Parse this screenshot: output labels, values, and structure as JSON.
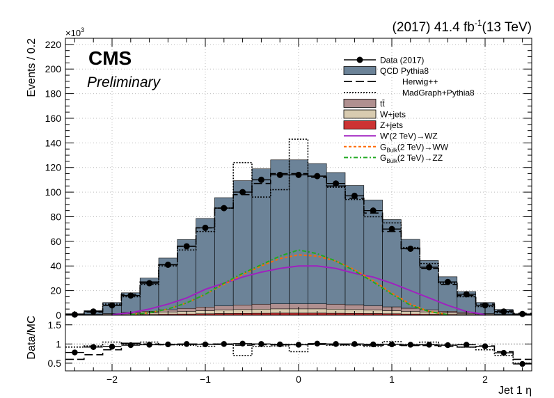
{
  "header": {
    "lumi": "(2017) 41.4 fb",
    "lumi_sup": "-1",
    "lumi_energy": "(13 TeV)",
    "experiment": "CMS",
    "status": "Preliminary",
    "exponent_base": "×10",
    "exponent_power": "3"
  },
  "chart_data": [
    {
      "type": "histogram",
      "panel": "main",
      "ylabel": "Events / 0.2",
      "xlabel": "",
      "xlim": [
        -2.5,
        2.5
      ],
      "ylim": [
        0,
        225
      ],
      "y_scale_note": "values in units of 10^3",
      "bin_edges": [
        -2.5,
        -2.3,
        -2.1,
        -1.9,
        -1.7,
        -1.5,
        -1.3,
        -1.1,
        -0.9,
        -0.7,
        -0.5,
        -0.3,
        -0.1,
        0.1,
        0.3,
        0.5,
        0.7,
        0.9,
        1.1,
        1.3,
        1.5,
        1.7,
        1.9,
        2.1,
        2.3,
        2.5
      ],
      "yticks": [
        0,
        20,
        40,
        60,
        80,
        100,
        120,
        140,
        160,
        180,
        200,
        220
      ],
      "xticks": [
        -2,
        -1,
        0,
        1,
        2
      ],
      "grid": true,
      "legend_position": "top-right",
      "legend": [
        {
          "label": "Data (2017)",
          "style": "marker"
        },
        {
          "label": "QCD Pythia8",
          "style": "fill",
          "color": "#6c8398"
        },
        {
          "label": "Herwig++",
          "style": "dash"
        },
        {
          "label": "MadGraph+Pythia8",
          "style": "dot"
        },
        {
          "label": "tt̄",
          "style": "fill",
          "color": "#b09090"
        },
        {
          "label": "W+jets",
          "style": "fill",
          "color": "#d8cbb0"
        },
        {
          "label": "Z+jets",
          "style": "fill",
          "color": "#cc3333"
        },
        {
          "label": "W'(2 TeV)→WZ",
          "style": "line",
          "color": "#a020c0"
        },
        {
          "label_main": "G",
          "label_sub": "Bulk",
          "label_rest": "(2 TeV)→WW",
          "style": "dashline",
          "color": "#ff6a00"
        },
        {
          "label_main": "G",
          "label_sub": "Bulk",
          "label_rest": "(2 TeV)→ZZ",
          "style": "dashdot",
          "color": "#22aa22"
        }
      ],
      "series": [
        {
          "name": "Data (2017)",
          "values": [
            0.5,
            3,
            8,
            16,
            26,
            41,
            56,
            71,
            87,
            100,
            110,
            114,
            114,
            113,
            107,
            97,
            85,
            70,
            54,
            39,
            27,
            17,
            8,
            3,
            1
          ]
        },
        {
          "name": "QCD Pythia8",
          "values": [
            1,
            3,
            9,
            16,
            27,
            42,
            56,
            72,
            88,
            101,
            110,
            117,
            117,
            114,
            107,
            97,
            86,
            71,
            56,
            40,
            28,
            17,
            9,
            4,
            1
          ]
        },
        {
          "name": "Herwig++",
          "values": [
            0.5,
            2.5,
            8,
            17,
            27,
            41,
            56,
            71,
            87,
            98,
            107,
            115,
            115,
            112,
            105,
            95,
            83,
            68,
            54,
            38,
            25,
            16,
            9,
            3.5,
            1.5
          ]
        },
        {
          "name": "MadGraph+Pythia8",
          "values": [
            0.5,
            3,
            9,
            15,
            25,
            40,
            53,
            68,
            87,
            124,
            96,
            102,
            143,
            113,
            104,
            94,
            80,
            75,
            55,
            42,
            26,
            15,
            7,
            2,
            0.5
          ]
        },
        {
          "name": "tt̄",
          "values": [
            0.1,
            0.3,
            0.6,
            1,
            1.4,
            2,
            2.5,
            3,
            3.3,
            3.7,
            4,
            4.1,
            4.1,
            4.1,
            4,
            3.8,
            3.4,
            3.1,
            2.6,
            2,
            1.4,
            1,
            0.6,
            0.3,
            0.1
          ]
        },
        {
          "name": "W+jets",
          "values": [
            0.1,
            0.3,
            0.5,
            0.8,
            1.2,
            1.6,
            2,
            2.4,
            2.8,
            3.1,
            3.3,
            3.4,
            3.4,
            3.4,
            3.3,
            3.1,
            2.8,
            2.4,
            2,
            1.6,
            1.2,
            0.8,
            0.5,
            0.3,
            0.1
          ]
        },
        {
          "name": "Z+jets",
          "values": [
            0.05,
            0.1,
            0.2,
            0.4,
            0.6,
            0.8,
            1,
            1.2,
            1.4,
            1.5,
            1.6,
            1.7,
            1.7,
            1.7,
            1.6,
            1.5,
            1.4,
            1.2,
            1,
            0.8,
            0.6,
            0.4,
            0.2,
            0.1,
            0.05
          ]
        },
        {
          "name": "W'(2 TeV)→WZ",
          "curve_x": [
            -2,
            -1.8,
            -1.6,
            -1.4,
            -1.2,
            -1,
            -0.8,
            -0.6,
            -0.4,
            -0.2,
            0,
            0.2,
            0.4,
            0.6,
            0.8,
            1,
            1.2,
            1.4,
            1.6,
            1.8,
            2
          ],
          "values": [
            0.5,
            2,
            5,
            9,
            14,
            21,
            26,
            31,
            35,
            38,
            40,
            40,
            38,
            34,
            31,
            26,
            20,
            14,
            8,
            3,
            0.5
          ]
        },
        {
          "name": "GBulk(2 TeV)→WW",
          "curve_x": [
            -1.8,
            -1.6,
            -1.4,
            -1.2,
            -1,
            -0.8,
            -0.6,
            -0.4,
            -0.2,
            0,
            0.2,
            0.4,
            0.6,
            0.8,
            1,
            1.2,
            1.4,
            1.6
          ],
          "values": [
            0.5,
            2,
            5,
            10,
            17,
            25,
            33,
            40,
            46,
            49,
            48,
            44,
            37,
            28,
            18,
            9,
            3,
            0.5
          ]
        },
        {
          "name": "GBulk(2 TeV)→ZZ",
          "curve_x": [
            -1.8,
            -1.6,
            -1.4,
            -1.2,
            -1,
            -0.8,
            -0.6,
            -0.4,
            -0.2,
            0,
            0.2,
            0.4,
            0.6,
            0.8,
            1,
            1.2,
            1.4,
            1.6
          ],
          "values": [
            0.5,
            2,
            5,
            10,
            17,
            26,
            34,
            41,
            48,
            53,
            50,
            44,
            36,
            27,
            17,
            8,
            3,
            0.5
          ]
        }
      ]
    },
    {
      "type": "ratio",
      "panel": "ratio",
      "ylabel": "Data/MC",
      "xlabel": "Jet 1 η",
      "xlim": [
        -2.5,
        2.5
      ],
      "ylim": [
        0.3,
        1.75
      ],
      "yticks": [
        0.5,
        1,
        1.5
      ],
      "xticks": [
        -2,
        -1,
        0,
        1,
        2
      ],
      "grid": true,
      "series": [
        {
          "name": "Data/MC",
          "values": [
            0.78,
            0.92,
            0.93,
            0.97,
            0.98,
            0.99,
            1.0,
            0.99,
            1.0,
            1.01,
            1.0,
            0.99,
            0.98,
            1.01,
            1.0,
            1.0,
            0.99,
            0.99,
            0.98,
            0.98,
            0.97,
            0.98,
            0.94,
            0.77,
            0.48
          ]
        },
        {
          "name": "Herwig++",
          "values": [
            0.6,
            0.72,
            0.85,
            1.02,
            1.0,
            0.98,
            0.99,
            1.0,
            0.99,
            0.97,
            0.98,
            0.98,
            0.98,
            0.99,
            0.98,
            0.98,
            0.97,
            0.97,
            0.96,
            0.96,
            0.93,
            0.92,
            0.95,
            0.8,
            0.6
          ]
        },
        {
          "name": "MadGraph+Pythia8",
          "values": [
            0.92,
            0.95,
            1.05,
            1.0,
            1.05,
            0.98,
            0.97,
            0.94,
            1.0,
            0.7,
            0.93,
            0.95,
            0.8,
            1.0,
            0.97,
            0.97,
            0.93,
            1.06,
            0.97,
            1.05,
            0.97,
            0.92,
            0.85,
            0.7,
            0.5
          ]
        }
      ]
    }
  ]
}
